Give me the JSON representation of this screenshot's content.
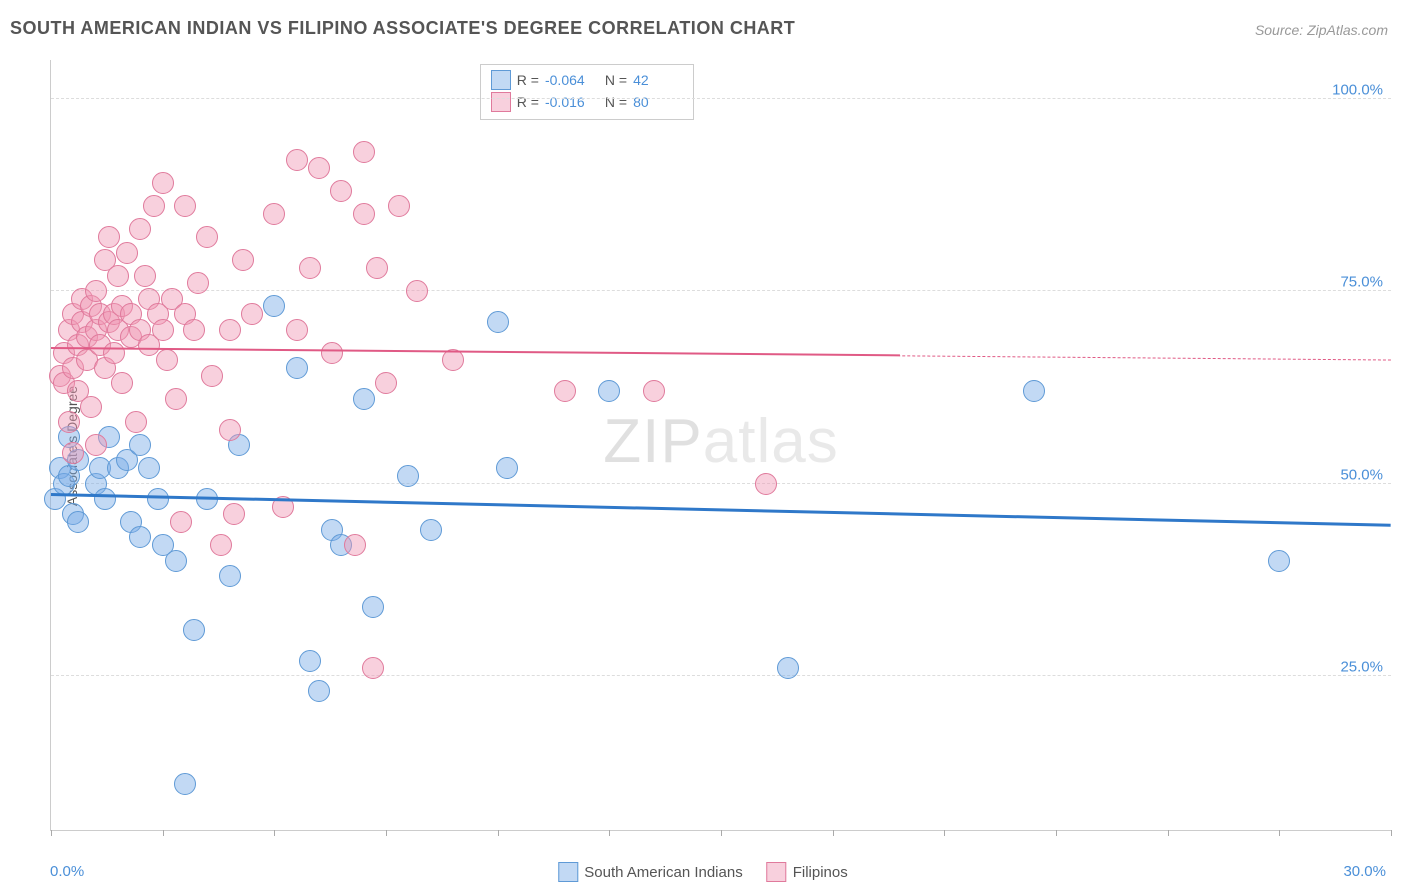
{
  "title": "SOUTH AMERICAN INDIAN VS FILIPINO ASSOCIATE'S DEGREE CORRELATION CHART",
  "source": "Source: ZipAtlas.com",
  "watermark": "ZIPatlas",
  "yaxis": {
    "label": "Associate's Degree",
    "min": 5,
    "max": 105,
    "gridlines": [
      25,
      50,
      75,
      100
    ],
    "tick_labels": [
      "25.0%",
      "50.0%",
      "75.0%",
      "100.0%"
    ],
    "label_color": "#4a8fd8",
    "label_fontsize": 15
  },
  "xaxis": {
    "min": 0,
    "max": 30,
    "ticks": [
      0,
      2.5,
      5,
      7.5,
      10,
      12.5,
      15,
      17.5,
      20,
      22.5,
      25,
      27.5,
      30
    ],
    "end_labels": [
      "0.0%",
      "30.0%"
    ],
    "label_color": "#4a8fd8"
  },
  "series": [
    {
      "name": "South American Indians",
      "color_fill": "rgba(120,170,230,0.45)",
      "color_stroke": "#5f9ad6",
      "marker_radius": 10,
      "r": "-0.064",
      "n": "42",
      "reg": {
        "y_at_xmin": 48.5,
        "y_at_xmax": 44.5,
        "color": "#2f78c9",
        "width": 2.5,
        "dashed_from_x": 30
      },
      "points": [
        [
          0.1,
          48
        ],
        [
          0.2,
          52
        ],
        [
          0.3,
          50
        ],
        [
          0.4,
          51
        ],
        [
          0.4,
          56
        ],
        [
          0.5,
          46
        ],
        [
          0.6,
          45
        ],
        [
          0.6,
          53
        ],
        [
          1.0,
          50
        ],
        [
          1.1,
          52
        ],
        [
          1.2,
          48
        ],
        [
          1.3,
          56
        ],
        [
          1.5,
          52
        ],
        [
          1.7,
          53
        ],
        [
          1.8,
          45
        ],
        [
          2.0,
          43
        ],
        [
          2.0,
          55
        ],
        [
          2.2,
          52
        ],
        [
          2.4,
          48
        ],
        [
          2.5,
          42
        ],
        [
          2.8,
          40
        ],
        [
          3.0,
          11
        ],
        [
          3.2,
          31
        ],
        [
          3.5,
          48
        ],
        [
          4.0,
          38
        ],
        [
          4.2,
          55
        ],
        [
          5.0,
          73
        ],
        [
          5.5,
          65
        ],
        [
          5.8,
          27
        ],
        [
          6.0,
          23
        ],
        [
          6.3,
          44
        ],
        [
          6.5,
          42
        ],
        [
          7.0,
          61
        ],
        [
          7.2,
          34
        ],
        [
          8.0,
          51
        ],
        [
          8.5,
          44
        ],
        [
          10.0,
          71
        ],
        [
          10.2,
          52
        ],
        [
          12.5,
          62
        ],
        [
          16.5,
          26
        ],
        [
          22.0,
          62
        ],
        [
          27.5,
          40
        ]
      ]
    },
    {
      "name": "Filipinos",
      "color_fill": "rgba(240,150,180,0.45)",
      "color_stroke": "#e07a9c",
      "marker_radius": 10,
      "r": "-0.016",
      "n": "80",
      "reg": {
        "y_at_xmin": 67.5,
        "y_at_xmax": 66.0,
        "color": "#e05a85",
        "width": 2,
        "dashed_from_x": 19
      },
      "points": [
        [
          0.2,
          64
        ],
        [
          0.3,
          63
        ],
        [
          0.3,
          67
        ],
        [
          0.4,
          58
        ],
        [
          0.4,
          70
        ],
        [
          0.5,
          65
        ],
        [
          0.5,
          72
        ],
        [
          0.5,
          54
        ],
        [
          0.6,
          68
        ],
        [
          0.6,
          62
        ],
        [
          0.7,
          71
        ],
        [
          0.7,
          74
        ],
        [
          0.8,
          69
        ],
        [
          0.8,
          66
        ],
        [
          0.9,
          73
        ],
        [
          0.9,
          60
        ],
        [
          1.0,
          70
        ],
        [
          1.0,
          75
        ],
        [
          1.0,
          55
        ],
        [
          1.1,
          72
        ],
        [
          1.1,
          68
        ],
        [
          1.2,
          65
        ],
        [
          1.2,
          79
        ],
        [
          1.3,
          71
        ],
        [
          1.3,
          82
        ],
        [
          1.4,
          67
        ],
        [
          1.4,
          72
        ],
        [
          1.5,
          70
        ],
        [
          1.5,
          77
        ],
        [
          1.6,
          73
        ],
        [
          1.6,
          63
        ],
        [
          1.7,
          80
        ],
        [
          1.8,
          72
        ],
        [
          1.8,
          69
        ],
        [
          1.9,
          58
        ],
        [
          2.0,
          83
        ],
        [
          2.0,
          70
        ],
        [
          2.1,
          77
        ],
        [
          2.2,
          74
        ],
        [
          2.2,
          68
        ],
        [
          2.3,
          86
        ],
        [
          2.4,
          72
        ],
        [
          2.5,
          70
        ],
        [
          2.5,
          89
        ],
        [
          2.6,
          66
        ],
        [
          2.7,
          74
        ],
        [
          2.8,
          61
        ],
        [
          2.9,
          45
        ],
        [
          3.0,
          86
        ],
        [
          3.0,
          72
        ],
        [
          3.2,
          70
        ],
        [
          3.3,
          76
        ],
        [
          3.5,
          82
        ],
        [
          3.6,
          64
        ],
        [
          3.8,
          42
        ],
        [
          4.0,
          70
        ],
        [
          4.0,
          57
        ],
        [
          4.1,
          46
        ],
        [
          4.3,
          79
        ],
        [
          4.5,
          72
        ],
        [
          5.0,
          85
        ],
        [
          5.2,
          47
        ],
        [
          5.5,
          92
        ],
        [
          5.5,
          70
        ],
        [
          5.8,
          78
        ],
        [
          6.0,
          91
        ],
        [
          6.3,
          67
        ],
        [
          6.5,
          88
        ],
        [
          6.8,
          42
        ],
        [
          7.0,
          93
        ],
        [
          7.0,
          85
        ],
        [
          7.2,
          26
        ],
        [
          7.3,
          78
        ],
        [
          7.5,
          63
        ],
        [
          7.8,
          86
        ],
        [
          8.2,
          75
        ],
        [
          9.0,
          66
        ],
        [
          11.5,
          62
        ],
        [
          13.5,
          62
        ],
        [
          16.0,
          50
        ]
      ]
    }
  ],
  "stats_box": {
    "rows": [
      {
        "swatch_fill": "rgba(120,170,230,0.45)",
        "swatch_stroke": "#5f9ad6",
        "r": "-0.064",
        "n": "42"
      },
      {
        "swatch_fill": "rgba(240,150,180,0.45)",
        "swatch_stroke": "#e07a9c",
        "r": "-0.016",
        "n": "80"
      }
    ]
  },
  "legend": {
    "items": [
      {
        "swatch_fill": "rgba(120,170,230,0.45)",
        "swatch_stroke": "#5f9ad6",
        "label": "South American Indians"
      },
      {
        "swatch_fill": "rgba(240,150,180,0.45)",
        "swatch_stroke": "#e07a9c",
        "label": "Filipinos"
      }
    ]
  },
  "styling": {
    "background": "#ffffff",
    "grid_color": "#dddddd",
    "axis_color": "#cccccc",
    "title_color": "#555555",
    "title_fontsize": 18
  }
}
